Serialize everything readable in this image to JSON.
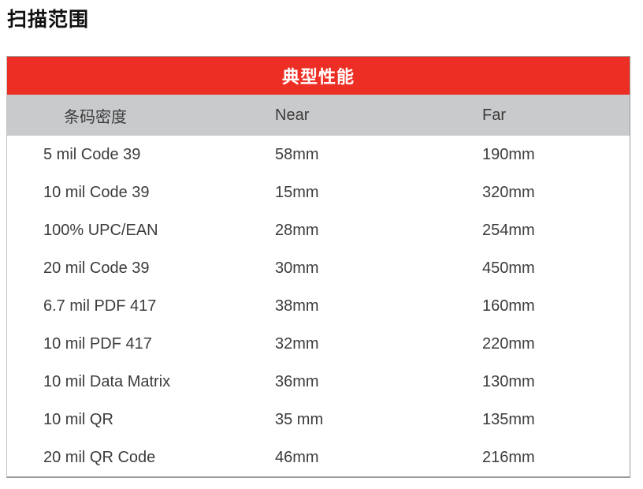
{
  "page": {
    "title": "扫描范围"
  },
  "table": {
    "header": "典型性能",
    "columns": [
      "条码密度",
      "Near",
      "Far"
    ],
    "rows": [
      [
        "5 mil Code 39",
        "58mm",
        "190mm"
      ],
      [
        "10 mil Code 39",
        "15mm",
        "320mm"
      ],
      [
        "100% UPC/EAN",
        "28mm",
        "254mm"
      ],
      [
        "20 mil Code 39",
        "30mm",
        "450mm"
      ],
      [
        "6.7 mil PDF 417",
        "38mm",
        "160mm"
      ],
      [
        "10 mil PDF 417",
        "32mm",
        "220mm"
      ],
      [
        "10 mil Data Matrix",
        "36mm",
        "130mm"
      ],
      [
        "10 mil QR",
        "35 mm",
        "135mm"
      ],
      [
        "20 mil QR Code",
        "46mm",
        "216mm"
      ]
    ],
    "colors": {
      "header_bg": "#ed2e24",
      "header_text": "#ffffff",
      "subheader_bg": "#c9cacc",
      "body_text": "#3c3c3c",
      "border": "#9b9b9b"
    }
  }
}
